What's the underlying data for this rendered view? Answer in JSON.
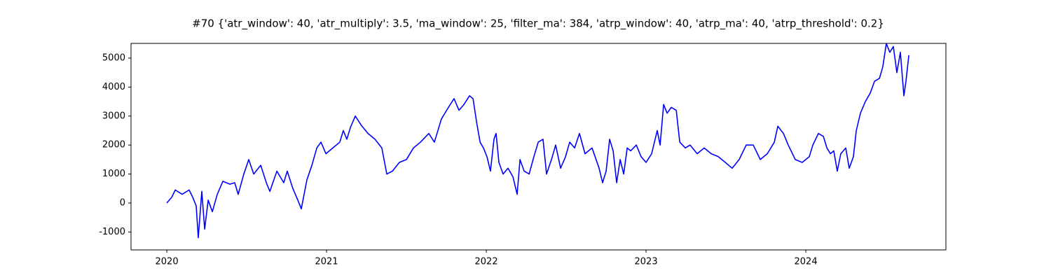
{
  "chart_data": {
    "type": "line",
    "title": "#70 {'atr_window': 40, 'atr_multiply': 3.5, 'ma_window': 25, 'filter_ma': 384, 'atrp_window': 40, 'atrp_ma': 40, 'atrp_threshold': 0.2}",
    "color": "#0000ff",
    "x": [
      2020.0,
      2020.031,
      2020.053,
      2020.096,
      2020.14,
      2020.162,
      2020.184,
      2020.197,
      2020.219,
      2020.237,
      2020.259,
      2020.285,
      2020.316,
      2020.351,
      2020.395,
      2020.425,
      2020.447,
      2020.482,
      2020.513,
      2020.544,
      2020.588,
      2020.623,
      2020.645,
      2020.689,
      2020.732,
      2020.754,
      2020.789,
      2020.82,
      2020.842,
      2020.877,
      2020.908,
      2020.939,
      2020.965,
      2020.996,
      2021.039,
      2021.083,
      2021.105,
      2021.127,
      2021.149,
      2021.18,
      2021.215,
      2021.259,
      2021.303,
      2021.346,
      2021.377,
      2021.412,
      2021.456,
      2021.5,
      2021.544,
      2021.588,
      2021.64,
      2021.675,
      2021.719,
      2021.763,
      2021.798,
      2021.829,
      2021.86,
      2021.895,
      2021.917,
      2021.939,
      2021.961,
      2021.982,
      2022.004,
      2022.026,
      2022.048,
      2022.061,
      2022.079,
      2022.105,
      2022.136,
      2022.167,
      2022.193,
      2022.211,
      2022.237,
      2022.268,
      2022.298,
      2022.325,
      2022.355,
      2022.377,
      2022.408,
      2022.434,
      2022.465,
      2022.496,
      2022.522,
      2022.553,
      2022.583,
      2022.618,
      2022.662,
      2022.706,
      2022.728,
      2022.75,
      2022.772,
      2022.794,
      2022.816,
      2022.838,
      2022.86,
      2022.882,
      2022.904,
      2022.939,
      2022.969,
      2023.0,
      2023.035,
      2023.07,
      2023.088,
      2023.11,
      2023.132,
      2023.158,
      2023.189,
      2023.211,
      2023.246,
      2023.276,
      2023.32,
      2023.364,
      2023.408,
      2023.452,
      2023.496,
      2023.539,
      2023.583,
      2023.627,
      2023.671,
      2023.715,
      2023.759,
      2023.803,
      2023.825,
      2023.86,
      2023.89,
      2023.934,
      2023.978,
      2024.022,
      2024.044,
      2024.079,
      2024.11,
      2024.132,
      2024.154,
      2024.175,
      2024.197,
      2024.219,
      2024.25,
      2024.272,
      2024.298,
      2024.316,
      2024.342,
      2024.373,
      2024.404,
      2024.43,
      2024.461,
      2024.482,
      2024.504,
      2024.526,
      2024.548,
      2024.57,
      2024.592,
      2024.614,
      2024.627,
      2024.645
    ],
    "values": [
      0,
      200,
      450,
      300,
      450,
      200,
      -100,
      -1200,
      400,
      -900,
      100,
      -300,
      300,
      750,
      650,
      700,
      300,
      1000,
      1500,
      1000,
      1300,
      700,
      400,
      1100,
      700,
      1100,
      500,
      100,
      -200,
      800,
      1300,
      1900,
      2100,
      1700,
      1900,
      2100,
      2500,
      2200,
      2600,
      3000,
      2700,
      2400,
      2200,
      1900,
      1000,
      1100,
      1400,
      1500,
      1900,
      2100,
      2400,
      2100,
      2900,
      3300,
      3600,
      3200,
      3400,
      3700,
      3600,
      2800,
      2100,
      1900,
      1600,
      1100,
      2200,
      2400,
      1400,
      1000,
      1200,
      900,
      300,
      1500,
      1100,
      1000,
      1600,
      2100,
      2200,
      1000,
      1500,
      2000,
      1200,
      1600,
      2100,
      1900,
      2400,
      1700,
      1900,
      1200,
      700,
      1100,
      2200,
      1800,
      700,
      1500,
      1000,
      1900,
      1800,
      2000,
      1600,
      1400,
      1700,
      2500,
      2000,
      3400,
      3100,
      3300,
      3200,
      2100,
      1900,
      2000,
      1700,
      1900,
      1700,
      1600,
      1400,
      1200,
      1500,
      2000,
      2000,
      1500,
      1700,
      2100,
      2650,
      2400,
      2000,
      1500,
      1400,
      1600,
      2000,
      2400,
      2300,
      1900,
      1700,
      1800,
      1100,
      1700,
      1900,
      1200,
      1600,
      2500,
      3100,
      3500,
      3800,
      4200,
      4300,
      4700,
      5500,
      5200,
      5400,
      4500,
      5200,
      3700,
      4200,
      5100
    ],
    "xlim": [
      2019.776,
      2024.877
    ],
    "xticks": [
      2020,
      2021,
      2022,
      2023,
      2024
    ],
    "ylim": [
      -1618,
      5507
    ],
    "yticks": [
      -1000,
      0,
      1000,
      2000,
      3000,
      4000,
      5000
    ]
  }
}
